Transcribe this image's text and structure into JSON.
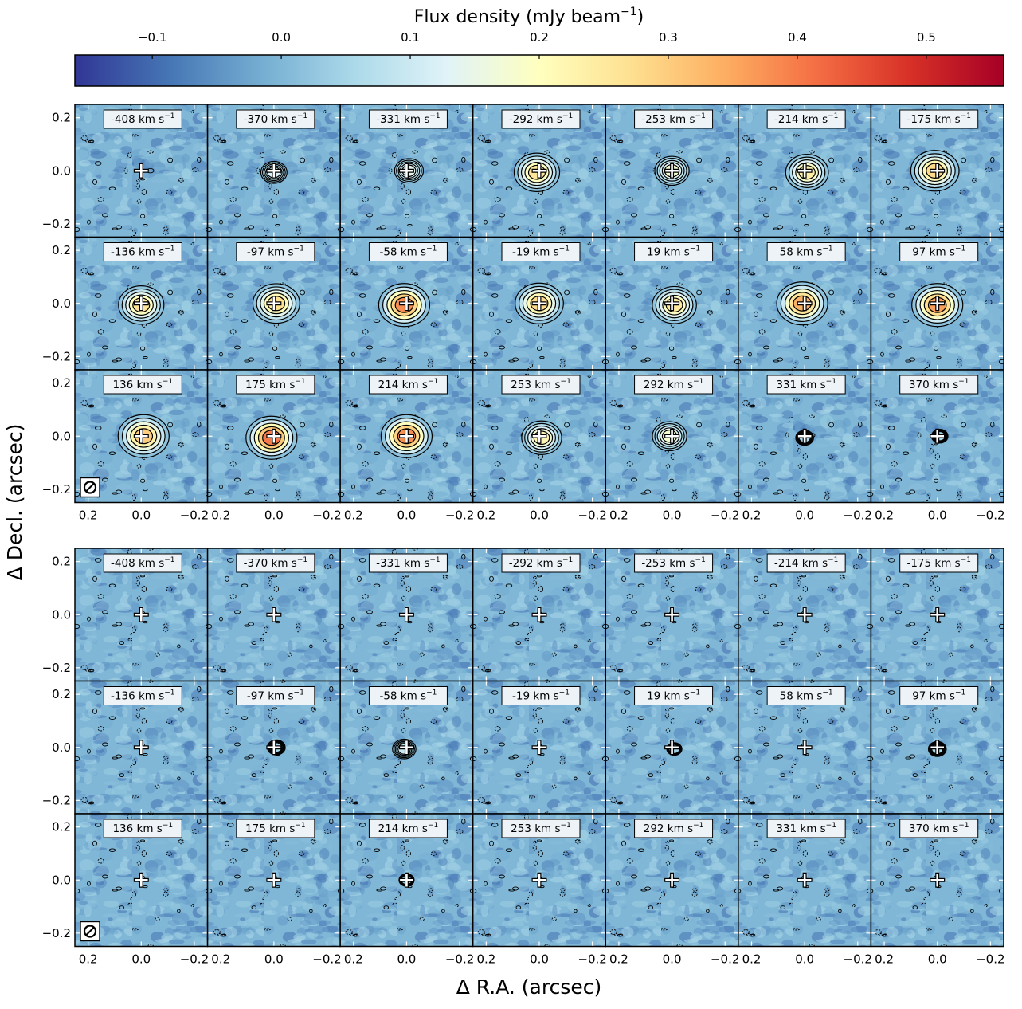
{
  "chart_data": {
    "type": "heatmap",
    "description_source": "channel maps",
    "colorbar": {
      "label": "Flux density (mJy beam",
      "label_sup": "−1",
      "label_suffix": ")",
      "min": -0.16,
      "max": 0.56,
      "ticks": [
        -0.1,
        0.0,
        0.1,
        0.2,
        0.3,
        0.4,
        0.5
      ],
      "tick_labels": [
        "−0.1",
        "0.0",
        "0.1",
        "0.2",
        "0.3",
        "0.4",
        "0.5"
      ],
      "colormap": "RdYlBu_r",
      "colors": [
        "#313695",
        "#4575b4",
        "#74add1",
        "#abd9e9",
        "#e0f3f8",
        "#ffffbf",
        "#fee090",
        "#fdae61",
        "#f46d43",
        "#d73027",
        "#a50026"
      ]
    },
    "x_axis": {
      "label": "Δ R.A. (arcsec)",
      "range": [
        0.25,
        -0.25
      ],
      "ticks": [
        0.2,
        0.0,
        -0.2
      ],
      "tick_labels": [
        "0.2",
        "0.0",
        "−0.2"
      ]
    },
    "y_axis": {
      "label": "Δ Decl. (arcsec)",
      "range": [
        -0.25,
        0.25
      ],
      "ticks": [
        0.2,
        0.0,
        -0.2
      ],
      "tick_labels": [
        "0.2",
        "0.0",
        "−0.2"
      ]
    },
    "velocity_unit": "km s",
    "velocity_unit_sup": "−1",
    "channels": [
      -408,
      -370,
      -331,
      -292,
      -253,
      -214,
      -175,
      -136,
      -97,
      -58,
      -19,
      19,
      58,
      97,
      136,
      175,
      214,
      253,
      292,
      331,
      370
    ],
    "grid": {
      "columns": 7,
      "rows_per_group": 3
    },
    "groups": [
      {
        "name": "upper",
        "peak_flux_per_channel": [
          0.02,
          0.12,
          0.14,
          0.26,
          0.18,
          0.24,
          0.28,
          0.26,
          0.27,
          0.38,
          0.28,
          0.25,
          0.34,
          0.36,
          0.3,
          0.4,
          0.38,
          0.22,
          0.18,
          0.06,
          0.05
        ],
        "beam_marker": true
      },
      {
        "name": "lower",
        "peak_flux_per_channel": [
          0.0,
          0.0,
          0.02,
          0.0,
          0.0,
          0.0,
          0.0,
          0.02,
          0.06,
          0.1,
          0.02,
          0.04,
          0.02,
          0.06,
          0.0,
          0.02,
          0.04,
          0.0,
          0.0,
          0.0,
          0.0
        ],
        "beam_marker": true
      }
    ],
    "center_marker": "plus"
  }
}
